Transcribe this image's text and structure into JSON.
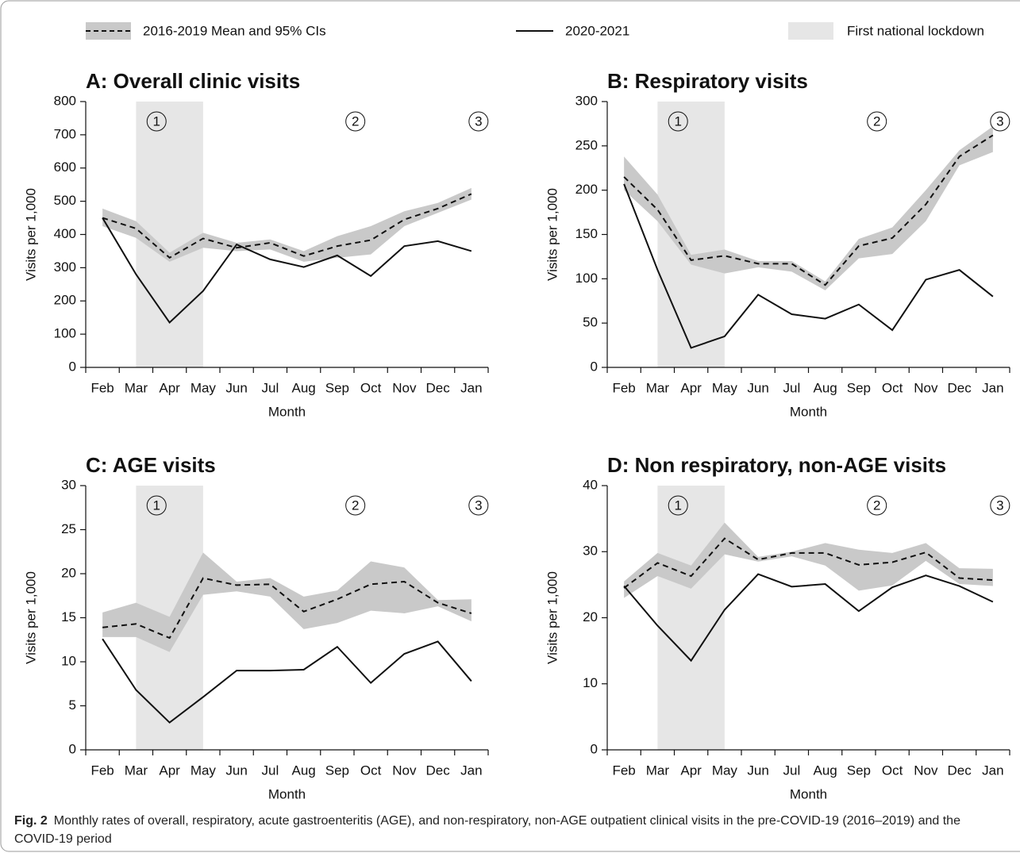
{
  "legend": {
    "items": [
      "2016-2019 Mean and 95% CIs",
      "2020-2021",
      "First national lockdown"
    ]
  },
  "caption": {
    "label": "Fig. 2",
    "text": "Monthly rates of overall, respiratory, acute gastroenteritis (AGE), and non-respiratory, non-AGE outpatient clinical visits in the pre-COVID-19 (2016–2019) and the COVID-19 period"
  },
  "chart_data": [
    {
      "type": "line",
      "title": "A: Overall clinic visits",
      "x_label": "Month",
      "y_label": "Visits per 1,000",
      "categories": [
        "Feb",
        "Mar",
        "Apr",
        "May",
        "Jun",
        "Jul",
        "Aug",
        "Sep",
        "Oct",
        "Nov",
        "Dec",
        "Jan"
      ],
      "shade": [
        "Mar",
        "May"
      ],
      "shade_color": "#e6e6e6",
      "band_color": "#c9c9c9",
      "annotations": [
        "1",
        "2",
        "3"
      ],
      "ylim": [
        0,
        800
      ],
      "yticks": [
        0,
        100,
        200,
        300,
        400,
        500,
        600,
        700,
        800
      ],
      "series": [
        {
          "style": "dashed",
          "color": "#111111",
          "values": [
            450,
            418,
            330,
            388,
            360,
            375,
            335,
            365,
            383,
            445,
            478,
            522
          ],
          "lower": [
            425,
            390,
            318,
            360,
            350,
            355,
            318,
            330,
            340,
            425,
            465,
            505
          ],
          "upper": [
            478,
            440,
            345,
            405,
            375,
            385,
            350,
            395,
            425,
            470,
            495,
            540
          ]
        },
        {
          "style": "solid",
          "color": "#111111",
          "values": [
            450,
            280,
            135,
            230,
            370,
            325,
            302,
            337,
            275,
            365,
            380,
            350
          ]
        }
      ]
    },
    {
      "type": "line",
      "title": "B: Respiratory visits",
      "x_label": "Month",
      "y_label": "Visits per 1,000",
      "categories": [
        "Feb",
        "Mar",
        "Apr",
        "May",
        "Jun",
        "Jul",
        "Aug",
        "Sep",
        "Oct",
        "Nov",
        "Dec",
        "Jan"
      ],
      "shade": [
        "Mar",
        "May"
      ],
      "shade_color": "#e6e6e6",
      "band_color": "#c9c9c9",
      "annotations": [
        "1",
        "2",
        "3"
      ],
      "ylim": [
        0,
        300
      ],
      "yticks": [
        0,
        50,
        100,
        150,
        200,
        250,
        300
      ],
      "series": [
        {
          "style": "dashed",
          "color": "#111111",
          "values": [
            215,
            178,
            121,
            126,
            117,
            117,
            93,
            137,
            146,
            184,
            238,
            262
          ],
          "lower": [
            200,
            165,
            116,
            106,
            113,
            108,
            87,
            123,
            128,
            165,
            228,
            243
          ],
          "upper": [
            238,
            195,
            127,
            133,
            120,
            120,
            97,
            145,
            158,
            200,
            245,
            272
          ]
        },
        {
          "style": "solid",
          "color": "#111111",
          "values": [
            207,
            110,
            22,
            35,
            82,
            60,
            55,
            71,
            42,
            99,
            110,
            80
          ]
        }
      ]
    },
    {
      "type": "line",
      "title": "C: AGE visits",
      "x_label": "Month",
      "y_label": "Visits per 1,000",
      "categories": [
        "Feb",
        "Mar",
        "Apr",
        "May",
        "Jun",
        "Jul",
        "Aug",
        "Sep",
        "Oct",
        "Nov",
        "Dec",
        "Jan"
      ],
      "shade": [
        "Mar",
        "May"
      ],
      "shade_color": "#e6e6e6",
      "band_color": "#c9c9c9",
      "annotations": [
        "1",
        "2",
        "3"
      ],
      "ylim": [
        0,
        30
      ],
      "yticks": [
        0,
        5,
        10,
        15,
        20,
        25,
        30
      ],
      "series": [
        {
          "style": "dashed",
          "color": "#111111",
          "values": [
            13.9,
            14.3,
            12.7,
            19.5,
            18.7,
            18.8,
            15.7,
            17.1,
            18.8,
            19.1,
            16.7,
            15.5
          ],
          "lower": [
            12.8,
            12.8,
            11.1,
            17.6,
            18.0,
            17.4,
            13.7,
            14.4,
            15.8,
            15.5,
            16.3,
            14.6
          ],
          "upper": [
            15.6,
            16.7,
            15.1,
            22.4,
            19.1,
            19.5,
            17.4,
            18.1,
            21.4,
            20.7,
            17.0,
            17.1
          ]
        },
        {
          "style": "solid",
          "color": "#111111",
          "values": [
            12.6,
            6.8,
            3.1,
            6.0,
            9.0,
            9.0,
            9.1,
            11.7,
            7.6,
            10.9,
            12.3,
            7.8
          ]
        }
      ]
    },
    {
      "type": "line",
      "title": "D: Non respiratory, non-AGE visits",
      "x_label": "Month",
      "y_label": "Visits per 1,000",
      "categories": [
        "Feb",
        "Mar",
        "Apr",
        "May",
        "Jun",
        "Jul",
        "Aug",
        "Sep",
        "Oct",
        "Nov",
        "Dec",
        "Jan"
      ],
      "shade": [
        "Mar",
        "May"
      ],
      "shade_color": "#e6e6e6",
      "band_color": "#c9c9c9",
      "annotations": [
        "1",
        "2",
        "3"
      ],
      "ylim": [
        0,
        40
      ],
      "yticks": [
        0,
        10,
        20,
        30,
        40
      ],
      "series": [
        {
          "style": "dashed",
          "color": "#111111",
          "values": [
            24.5,
            28.3,
            26.3,
            32.0,
            28.8,
            29.8,
            29.8,
            28.0,
            28.4,
            29.9,
            26.0,
            25.7
          ],
          "lower": [
            23.0,
            26.3,
            24.4,
            29.6,
            28.5,
            29.3,
            27.9,
            24.1,
            24.9,
            28.6,
            25.1,
            24.8
          ],
          "upper": [
            25.5,
            29.8,
            27.9,
            34.4,
            29.2,
            30.0,
            31.3,
            30.3,
            29.8,
            31.3,
            27.5,
            27.4
          ]
        },
        {
          "style": "solid",
          "color": "#111111",
          "values": [
            24.8,
            18.8,
            13.5,
            21.2,
            26.6,
            24.7,
            25.1,
            21.0,
            24.6,
            26.4,
            24.8,
            22.4
          ]
        }
      ]
    }
  ]
}
